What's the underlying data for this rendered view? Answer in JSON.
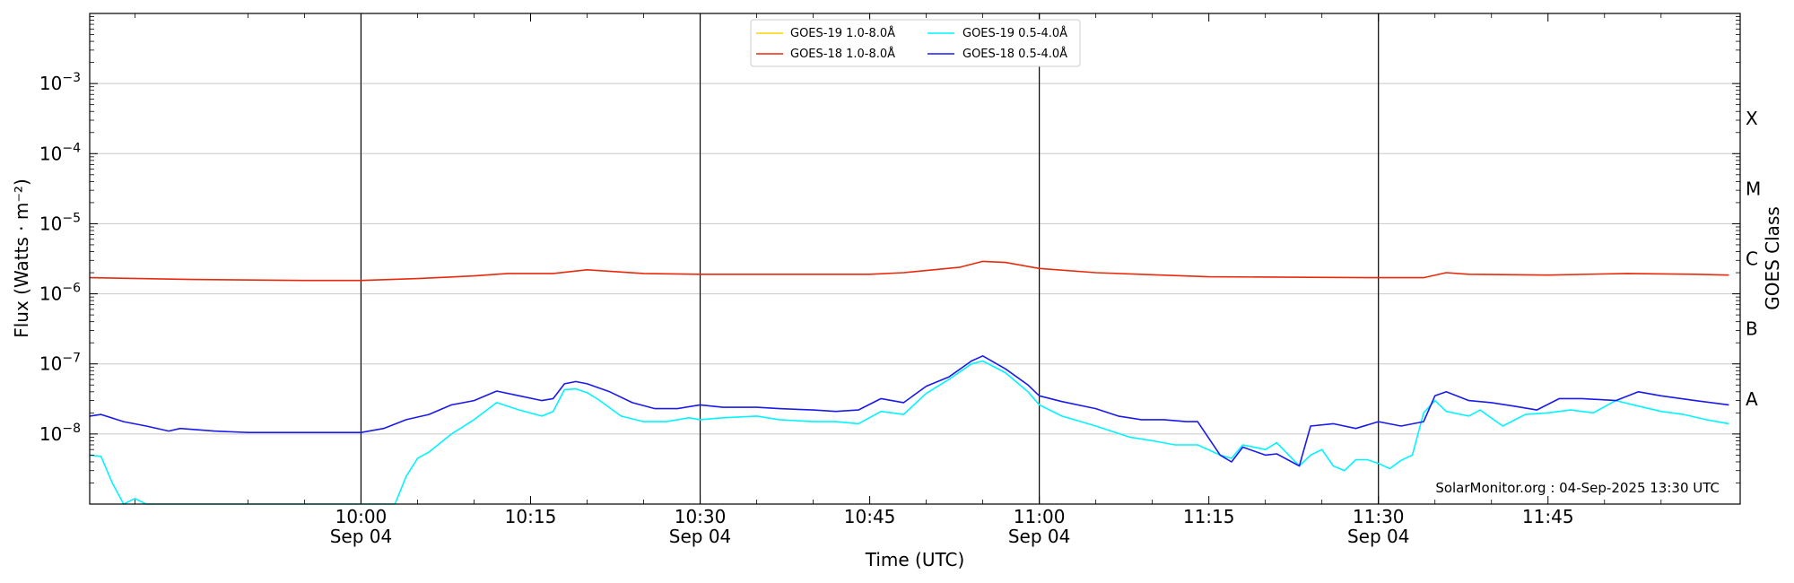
{
  "chart_data": {
    "type": "line",
    "xlabel": "Time (UTC)",
    "ylabel": "Flux (Watts · m⁻²)",
    "ylabel_right": "GOES Class",
    "y_scale": "log",
    "ylim": [
      1e-09,
      0.01
    ],
    "xlim": [
      "2025-09-04 09:36",
      "2025-09-04 12:02"
    ],
    "grid": "horizontal at y decades",
    "legend_position": "top-center",
    "watermark": "SolarMonitor.org : 04-Sep-2025 13:30 UTC",
    "y_ticks": [
      {
        "value": 1e-08,
        "base": "10",
        "exp": "−8"
      },
      {
        "value": 1e-07,
        "base": "10",
        "exp": "−7"
      },
      {
        "value": 1e-06,
        "base": "10",
        "exp": "−6"
      },
      {
        "value": 1e-05,
        "base": "10",
        "exp": "−5"
      },
      {
        "value": 0.0001,
        "base": "10",
        "exp": "−4"
      },
      {
        "value": 0.001,
        "base": "10",
        "exp": "−3"
      }
    ],
    "x_ticks": [
      {
        "time": "10:00",
        "label": "10:00",
        "sublabel": "Sep 04"
      },
      {
        "time": "10:15",
        "label": "10:15",
        "sublabel": ""
      },
      {
        "time": "10:30",
        "label": "10:30",
        "sublabel": "Sep 04"
      },
      {
        "time": "10:45",
        "label": "10:45",
        "sublabel": ""
      },
      {
        "time": "11:00",
        "label": "11:00",
        "sublabel": "Sep 04"
      },
      {
        "time": "11:15",
        "label": "11:15",
        "sublabel": ""
      },
      {
        "time": "11:30",
        "label": "11:30",
        "sublabel": "Sep 04"
      },
      {
        "time": "11:45",
        "label": "11:45",
        "sublabel": ""
      }
    ],
    "vertical_lines": [
      "10:00",
      "10:30",
      "11:00",
      "11:30"
    ],
    "goes_classes": [
      {
        "label": "X",
        "flux": 0.0001
      },
      {
        "label": "M",
        "flux": 1e-05
      },
      {
        "label": "C",
        "flux": 1e-06
      },
      {
        "label": "B",
        "flux": 1e-07
      },
      {
        "label": "A",
        "flux": 1e-08
      }
    ],
    "series": [
      {
        "name": "GOES-19 1.0-8.0Å",
        "color": "#ffd400",
        "points": []
      },
      {
        "name": "GOES-18 1.0-8.0Å",
        "color": "#e8290b",
        "points": [
          [
            "09:36",
            1.7e-06
          ],
          [
            "09:45",
            1.6e-06
          ],
          [
            "09:55",
            1.55e-06
          ],
          [
            "10:00",
            1.55e-06
          ],
          [
            "10:05",
            1.65e-06
          ],
          [
            "10:10",
            1.8e-06
          ],
          [
            "10:13",
            1.95e-06
          ],
          [
            "10:17",
            1.95e-06
          ],
          [
            "10:20",
            2.2e-06
          ],
          [
            "10:25",
            1.95e-06
          ],
          [
            "10:30",
            1.9e-06
          ],
          [
            "10:35",
            1.9e-06
          ],
          [
            "10:45",
            1.9e-06
          ],
          [
            "10:48",
            2e-06
          ],
          [
            "10:53",
            2.4e-06
          ],
          [
            "10:55",
            2.9e-06
          ],
          [
            "10:57",
            2.8e-06
          ],
          [
            "11:00",
            2.3e-06
          ],
          [
            "11:05",
            2e-06
          ],
          [
            "11:15",
            1.75e-06
          ],
          [
            "11:30",
            1.7e-06
          ],
          [
            "11:34",
            1.7e-06
          ],
          [
            "11:36",
            2e-06
          ],
          [
            "11:38",
            1.9e-06
          ],
          [
            "11:45",
            1.85e-06
          ],
          [
            "11:52",
            1.95e-06
          ],
          [
            "11:58",
            1.9e-06
          ],
          [
            "12:01",
            1.85e-06
          ]
        ]
      },
      {
        "name": "GOES-19 0.5-4.0Å",
        "color": "#00f5ff",
        "points": [
          [
            "09:36",
            5e-09
          ],
          [
            "09:37",
            4.8e-09
          ],
          [
            "09:38",
            2e-09
          ],
          [
            "09:39",
            1e-09
          ],
          [
            "09:40",
            1.2e-09
          ],
          [
            "09:41",
            1e-09
          ],
          [
            "09:44",
            1e-09
          ],
          [
            "09:50",
            1e-09
          ],
          [
            "09:55",
            1e-09
          ],
          [
            "10:00",
            1e-09
          ],
          [
            "10:01",
            1e-09
          ],
          [
            "10:02",
            1e-09
          ],
          [
            "10:03",
            1e-09
          ],
          [
            "10:04",
            2.5e-09
          ],
          [
            "10:05",
            4.5e-09
          ],
          [
            "10:06",
            5.5e-09
          ],
          [
            "10:08",
            1e-08
          ],
          [
            "10:10",
            1.6e-08
          ],
          [
            "10:12",
            2.8e-08
          ],
          [
            "10:14",
            2.2e-08
          ],
          [
            "10:16",
            1.8e-08
          ],
          [
            "10:17",
            2.1e-08
          ],
          [
            "10:18",
            4.3e-08
          ],
          [
            "10:19",
            4.4e-08
          ],
          [
            "10:20",
            3.9e-08
          ],
          [
            "10:21",
            3.1e-08
          ],
          [
            "10:23",
            1.8e-08
          ],
          [
            "10:25",
            1.5e-08
          ],
          [
            "10:27",
            1.5e-08
          ],
          [
            "10:29",
            1.7e-08
          ],
          [
            "10:30",
            1.6e-08
          ],
          [
            "10:32",
            1.7e-08
          ],
          [
            "10:35",
            1.8e-08
          ],
          [
            "10:37",
            1.6e-08
          ],
          [
            "10:40",
            1.5e-08
          ],
          [
            "10:42",
            1.5e-08
          ],
          [
            "10:44",
            1.4e-08
          ],
          [
            "10:46",
            2.1e-08
          ],
          [
            "10:48",
            1.9e-08
          ],
          [
            "10:50",
            3.8e-08
          ],
          [
            "10:52",
            6e-08
          ],
          [
            "10:54",
            1e-07
          ],
          [
            "10:55",
            1.1e-07
          ],
          [
            "10:57",
            7.5e-08
          ],
          [
            "10:59",
            4e-08
          ],
          [
            "11:00",
            2.6e-08
          ],
          [
            "11:02",
            1.8e-08
          ],
          [
            "11:05",
            1.3e-08
          ],
          [
            "11:08",
            9e-09
          ],
          [
            "11:10",
            8e-09
          ],
          [
            "11:12",
            7e-09
          ],
          [
            "11:14",
            7e-09
          ],
          [
            "11:16",
            5e-09
          ],
          [
            "11:17",
            4.5e-09
          ],
          [
            "11:18",
            7e-09
          ],
          [
            "11:20",
            6e-09
          ],
          [
            "11:21",
            7.5e-09
          ],
          [
            "11:23",
            3.5e-09
          ],
          [
            "11:24",
            5e-09
          ],
          [
            "11:25",
            6e-09
          ],
          [
            "11:26",
            3.5e-09
          ],
          [
            "11:27",
            3e-09
          ],
          [
            "11:28",
            4.3e-09
          ],
          [
            "11:29",
            4.3e-09
          ],
          [
            "11:30",
            3.8e-09
          ],
          [
            "11:31",
            3.2e-09
          ],
          [
            "11:32",
            4.2e-09
          ],
          [
            "11:33",
            5e-09
          ],
          [
            "11:34",
            2e-08
          ],
          [
            "11:35",
            3e-08
          ],
          [
            "11:36",
            2.1e-08
          ],
          [
            "11:38",
            1.8e-08
          ],
          [
            "11:39",
            2.2e-08
          ],
          [
            "11:41",
            1.3e-08
          ],
          [
            "11:43",
            1.9e-08
          ],
          [
            "11:45",
            2e-08
          ],
          [
            "11:47",
            2.2e-08
          ],
          [
            "11:49",
            2e-08
          ],
          [
            "11:51",
            3e-08
          ],
          [
            "11:53",
            2.5e-08
          ],
          [
            "11:55",
            2.1e-08
          ],
          [
            "11:57",
            1.9e-08
          ],
          [
            "11:59",
            1.6e-08
          ],
          [
            "12:01",
            1.4e-08
          ]
        ]
      },
      {
        "name": "GOES-18 0.5-4.0Å",
        "color": "#1a1aee",
        "points": [
          [
            "09:36",
            1.8e-08
          ],
          [
            "09:37",
            1.9e-08
          ],
          [
            "09:39",
            1.5e-08
          ],
          [
            "09:41",
            1.3e-08
          ],
          [
            "09:43",
            1.1e-08
          ],
          [
            "09:44",
            1.2e-08
          ],
          [
            "09:47",
            1.1e-08
          ],
          [
            "09:50",
            1.05e-08
          ],
          [
            "09:55",
            1.05e-08
          ],
          [
            "10:00",
            1.05e-08
          ],
          [
            "10:02",
            1.2e-08
          ],
          [
            "10:04",
            1.6e-08
          ],
          [
            "10:06",
            1.9e-08
          ],
          [
            "10:08",
            2.6e-08
          ],
          [
            "10:10",
            3e-08
          ],
          [
            "10:12",
            4.1e-08
          ],
          [
            "10:14",
            3.5e-08
          ],
          [
            "10:16",
            3e-08
          ],
          [
            "10:17",
            3.2e-08
          ],
          [
            "10:18",
            5.2e-08
          ],
          [
            "10:19",
            5.6e-08
          ],
          [
            "10:20",
            5.2e-08
          ],
          [
            "10:22",
            4e-08
          ],
          [
            "10:24",
            2.8e-08
          ],
          [
            "10:26",
            2.3e-08
          ],
          [
            "10:28",
            2.3e-08
          ],
          [
            "10:30",
            2.6e-08
          ],
          [
            "10:32",
            2.4e-08
          ],
          [
            "10:35",
            2.4e-08
          ],
          [
            "10:37",
            2.3e-08
          ],
          [
            "10:40",
            2.2e-08
          ],
          [
            "10:42",
            2.1e-08
          ],
          [
            "10:44",
            2.2e-08
          ],
          [
            "10:46",
            3.2e-08
          ],
          [
            "10:48",
            2.8e-08
          ],
          [
            "10:50",
            4.8e-08
          ],
          [
            "10:52",
            6.5e-08
          ],
          [
            "10:54",
            1.1e-07
          ],
          [
            "10:55",
            1.3e-07
          ],
          [
            "10:57",
            8.5e-08
          ],
          [
            "10:59",
            5e-08
          ],
          [
            "11:00",
            3.5e-08
          ],
          [
            "11:02",
            2.9e-08
          ],
          [
            "11:05",
            2.3e-08
          ],
          [
            "11:07",
            1.8e-08
          ],
          [
            "11:09",
            1.6e-08
          ],
          [
            "11:11",
            1.6e-08
          ],
          [
            "11:13",
            1.5e-08
          ],
          [
            "11:14",
            1.5e-08
          ],
          [
            "11:16",
            5e-09
          ],
          [
            "11:17",
            4e-09
          ],
          [
            "11:18",
            6.5e-09
          ],
          [
            "11:20",
            5e-09
          ],
          [
            "11:21",
            5.2e-09
          ],
          [
            "11:23",
            3.5e-09
          ],
          [
            "11:24",
            1.3e-08
          ],
          [
            "11:26",
            1.4e-08
          ],
          [
            "11:28",
            1.2e-08
          ],
          [
            "11:30",
            1.5e-08
          ],
          [
            "11:32",
            1.3e-08
          ],
          [
            "11:34",
            1.5e-08
          ],
          [
            "11:35",
            3.5e-08
          ],
          [
            "11:36",
            4e-08
          ],
          [
            "11:38",
            3e-08
          ],
          [
            "11:40",
            2.8e-08
          ],
          [
            "11:42",
            2.5e-08
          ],
          [
            "11:44",
            2.2e-08
          ],
          [
            "11:46",
            3.2e-08
          ],
          [
            "11:48",
            3.2e-08
          ],
          [
            "11:51",
            3e-08
          ],
          [
            "11:53",
            4e-08
          ],
          [
            "11:55",
            3.5e-08
          ],
          [
            "11:58",
            3e-08
          ],
          [
            "12:01",
            2.6e-08
          ]
        ]
      }
    ]
  }
}
